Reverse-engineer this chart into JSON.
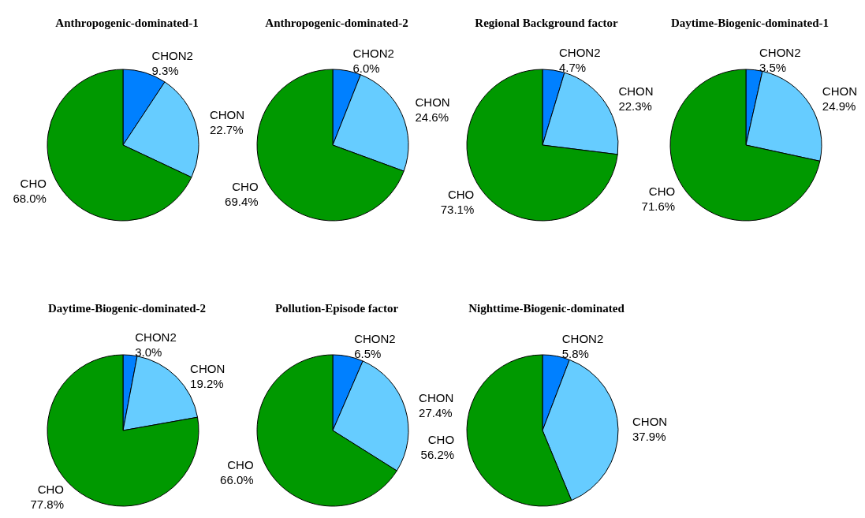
{
  "chart_data": [
    {
      "type": "pie",
      "title": "Anthropogenic-dominated-1",
      "categories": [
        "CHON2",
        "CHON",
        "CHO"
      ],
      "values": [
        9.3,
        22.7,
        68.0
      ],
      "value_labels": [
        "9.3%",
        "22.7%",
        "68.0%"
      ],
      "colors": [
        "#0080ff",
        "#66ccff",
        "#009900"
      ],
      "legend": false
    },
    {
      "type": "pie",
      "title": "Anthropogenic-dominated-2",
      "categories": [
        "CHON2",
        "CHON",
        "CHO"
      ],
      "values": [
        6.0,
        24.6,
        69.4
      ],
      "value_labels": [
        "6.0%",
        "24.6%",
        "69.4%"
      ],
      "colors": [
        "#0080ff",
        "#66ccff",
        "#009900"
      ],
      "legend": false
    },
    {
      "type": "pie",
      "title": "Regional Background factor",
      "categories": [
        "CHON2",
        "CHON",
        "CHO"
      ],
      "values": [
        4.7,
        22.3,
        73.1
      ],
      "value_labels": [
        "4.7%",
        "22.3%",
        "73.1%"
      ],
      "colors": [
        "#0080ff",
        "#66ccff",
        "#009900"
      ],
      "legend": false
    },
    {
      "type": "pie",
      "title": "Daytime-Biogenic-dominated-1",
      "categories": [
        "CHON2",
        "CHON",
        "CHO"
      ],
      "values": [
        3.5,
        24.9,
        71.6
      ],
      "value_labels": [
        "3.5%",
        "24.9%",
        "71.6%"
      ],
      "colors": [
        "#0080ff",
        "#66ccff",
        "#009900"
      ],
      "legend": false
    },
    {
      "type": "pie",
      "title": "Daytime-Biogenic-dominated-2",
      "categories": [
        "CHON2",
        "CHON",
        "CHO"
      ],
      "values": [
        3.0,
        19.2,
        77.8
      ],
      "value_labels": [
        "3.0%",
        "19.2%",
        "77.8%"
      ],
      "colors": [
        "#0080ff",
        "#66ccff",
        "#009900"
      ],
      "legend": false
    },
    {
      "type": "pie",
      "title": "Pollution-Episode factor",
      "categories": [
        "CHON2",
        "CHON",
        "CHO"
      ],
      "values": [
        6.5,
        27.4,
        66.0
      ],
      "value_labels": [
        "6.5%",
        "27.4%",
        "66.0%"
      ],
      "colors": [
        "#0080ff",
        "#66ccff",
        "#009900"
      ],
      "legend": false
    },
    {
      "type": "pie",
      "title": "Nighttime-Biogenic-dominated",
      "categories": [
        "CHON2",
        "CHON",
        "CHO"
      ],
      "values": [
        5.8,
        37.9,
        56.2
      ],
      "value_labels": [
        "5.8%",
        "37.9%",
        "56.2%"
      ],
      "colors": [
        "#0080ff",
        "#66ccff",
        "#009900"
      ],
      "legend": false
    }
  ]
}
